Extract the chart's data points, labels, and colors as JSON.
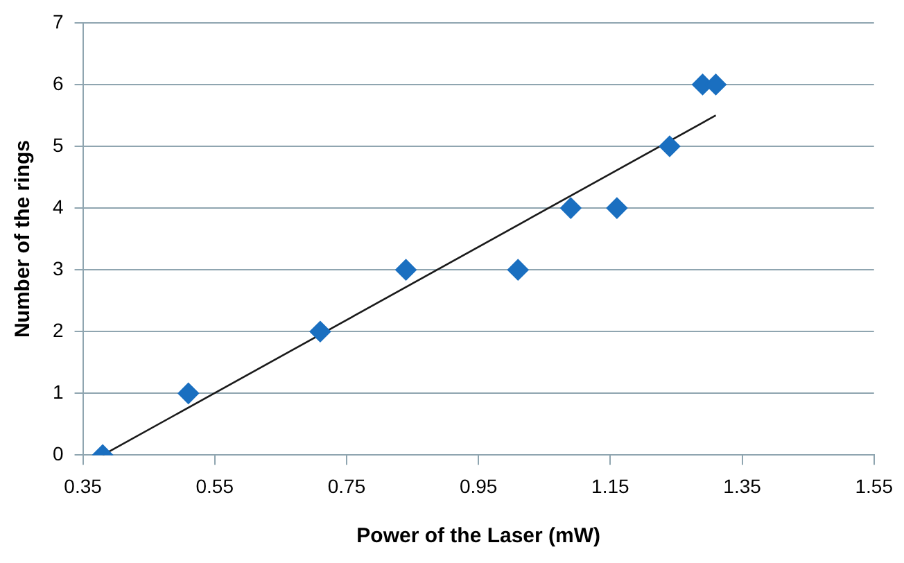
{
  "chart_data": {
    "type": "scatter",
    "xlabel": "Power of the Laser (mW)",
    "ylabel": "Number of the rings",
    "xlim": [
      0.35,
      1.55
    ],
    "xticks": [
      0.35,
      0.55,
      0.75,
      0.95,
      1.15,
      1.35,
      1.55
    ],
    "ylim": [
      0,
      7
    ],
    "yticks": [
      0,
      1,
      2,
      3,
      4,
      5,
      6,
      7
    ],
    "grid": "y",
    "legend": false,
    "marker": "diamond",
    "series": [
      {
        "color": "#1a6fc0",
        "x": [
          0.38,
          0.51,
          0.71,
          0.84,
          1.01,
          1.09,
          1.16,
          1.24,
          1.29,
          1.31
        ],
        "values": [
          0,
          1,
          2,
          3,
          3,
          4,
          4,
          5,
          6,
          6
        ]
      },
      {
        "type": "line",
        "color": "#1a1a1a",
        "marker": "none",
        "line_style": "solid",
        "x": [
          0.38,
          1.31
        ],
        "values": [
          0,
          5.5
        ]
      }
    ]
  }
}
